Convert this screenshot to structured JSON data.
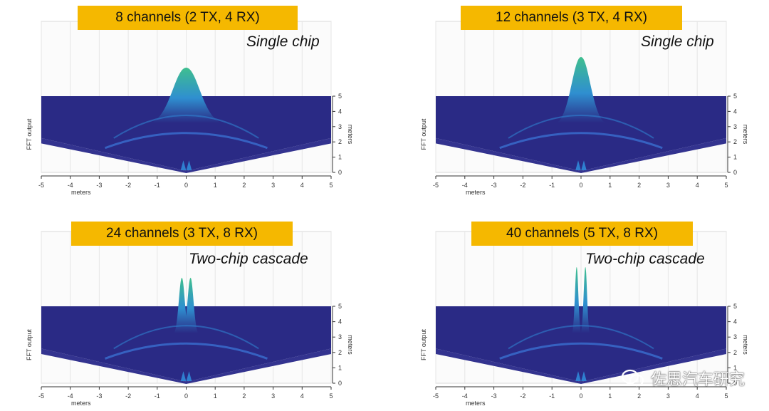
{
  "chart_data": [
    {
      "type": "surface",
      "title": "8 channels (2 TX, 4 RX)",
      "subtitle": "Single chip",
      "zlabel": "FFT output",
      "xlabel": "meters",
      "ylabel": "meters",
      "xlim": [
        -5,
        5
      ],
      "ylim": [
        0,
        5
      ],
      "xticks": [
        "-5",
        "-4",
        "-3",
        "-2",
        "-1",
        "0",
        "1",
        "2",
        "3",
        "4",
        "5"
      ],
      "yticks": [
        "0",
        "1",
        "2",
        "3",
        "4",
        "5"
      ],
      "peaks": [
        {
          "x": 0,
          "height": 1.0,
          "width": 0.55
        }
      ]
    },
    {
      "type": "surface",
      "title": "12 channels (3 TX, 4 RX)",
      "subtitle": "Single chip",
      "zlabel": "FFT output",
      "xlabel": "meters",
      "ylabel": "meters",
      "xlim": [
        -5,
        5
      ],
      "ylim": [
        0,
        5
      ],
      "xticks": [
        "-5",
        "-4",
        "-3",
        "-2",
        "-1",
        "0",
        "1",
        "2",
        "3",
        "4",
        "5"
      ],
      "yticks": [
        "0",
        "1",
        "2",
        "3",
        "4",
        "5"
      ],
      "peaks": [
        {
          "x": 0,
          "height": 1.0,
          "width": 0.38
        }
      ]
    },
    {
      "type": "surface",
      "title": "24 channels (3 TX, 8 RX)",
      "subtitle": "Two-chip cascade",
      "zlabel": "FFT output",
      "xlabel": "meters",
      "ylabel": "meters",
      "xlim": [
        -5,
        5
      ],
      "ylim": [
        0,
        5
      ],
      "xticks": [
        "-5",
        "-4",
        "-3",
        "-2",
        "-1",
        "0",
        "1",
        "2",
        "3",
        "4",
        "5"
      ],
      "yticks": [
        "0",
        "1",
        "2",
        "3",
        "4",
        "5"
      ],
      "peaks": [
        {
          "x": -0.15,
          "height": 1.0,
          "width": 0.12
        },
        {
          "x": 0.15,
          "height": 1.0,
          "width": 0.12
        }
      ]
    },
    {
      "type": "surface",
      "title": "40 channels (5 TX, 8 RX)",
      "subtitle": "Two-chip cascade",
      "zlabel": "FFT output",
      "xlabel": "meters",
      "ylabel": "meters",
      "xlim": [
        -5,
        5
      ],
      "ylim": [
        0,
        5
      ],
      "xticks": [
        "-5",
        "-4",
        "-3",
        "-2",
        "-1",
        "0",
        "1",
        "2",
        "3",
        "4",
        "5"
      ],
      "yticks": [
        "0",
        "1",
        "2",
        "3",
        "4",
        "5"
      ],
      "peaks": [
        {
          "x": -0.15,
          "height": 1.0,
          "width": 0.07
        },
        {
          "x": 0.15,
          "height": 1.0,
          "width": 0.07
        }
      ]
    }
  ],
  "watermark": "佐思汽车研究",
  "colors": {
    "badge": "#f5b800",
    "surface": "#2a2a85",
    "peak_top": "#3fbf8f",
    "peak_mid": "#2f8fd0"
  }
}
